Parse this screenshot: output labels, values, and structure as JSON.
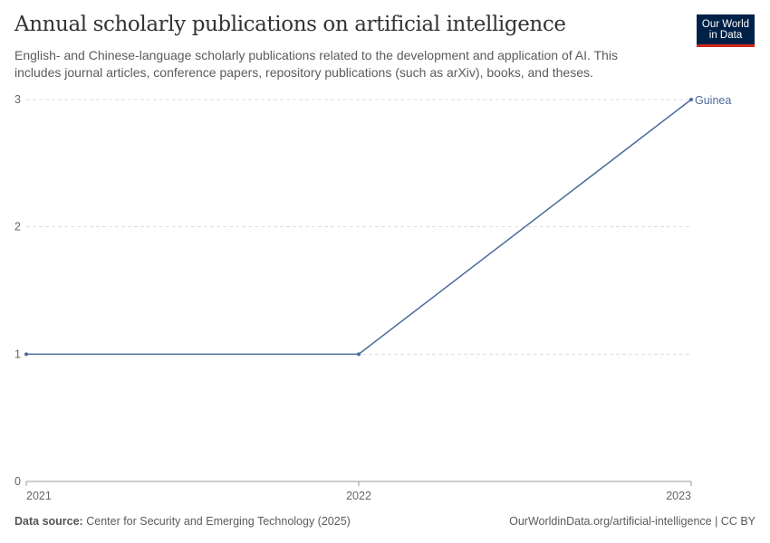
{
  "header": {
    "title": "Annual scholarly publications on artificial intelligence",
    "subtitle": "English- and Chinese-language scholarly publications related to the development and application of AI. This includes journal articles, conference papers, repository publications (such as arXiv), books, and theses.",
    "logo_line1": "Our World",
    "logo_line2": "in Data"
  },
  "footer": {
    "source_label": "Data source:",
    "source_text": "Center for Security and Emerging Technology (2025)",
    "url": "OurWorldinData.org/artificial-intelligence | CC BY"
  },
  "chart_data": {
    "type": "line",
    "title": "Annual scholarly publications on artificial intelligence",
    "x": [
      2021,
      2022,
      2023
    ],
    "xticks": [
      "2021",
      "2022",
      "2023"
    ],
    "yticks": [
      "0",
      "1",
      "2",
      "3"
    ],
    "ylim": [
      0,
      3
    ],
    "grid": "horizontal dashed",
    "series": [
      {
        "name": "Guinea",
        "values": [
          1,
          1,
          3
        ],
        "color": "#4c6a9c"
      }
    ]
  }
}
